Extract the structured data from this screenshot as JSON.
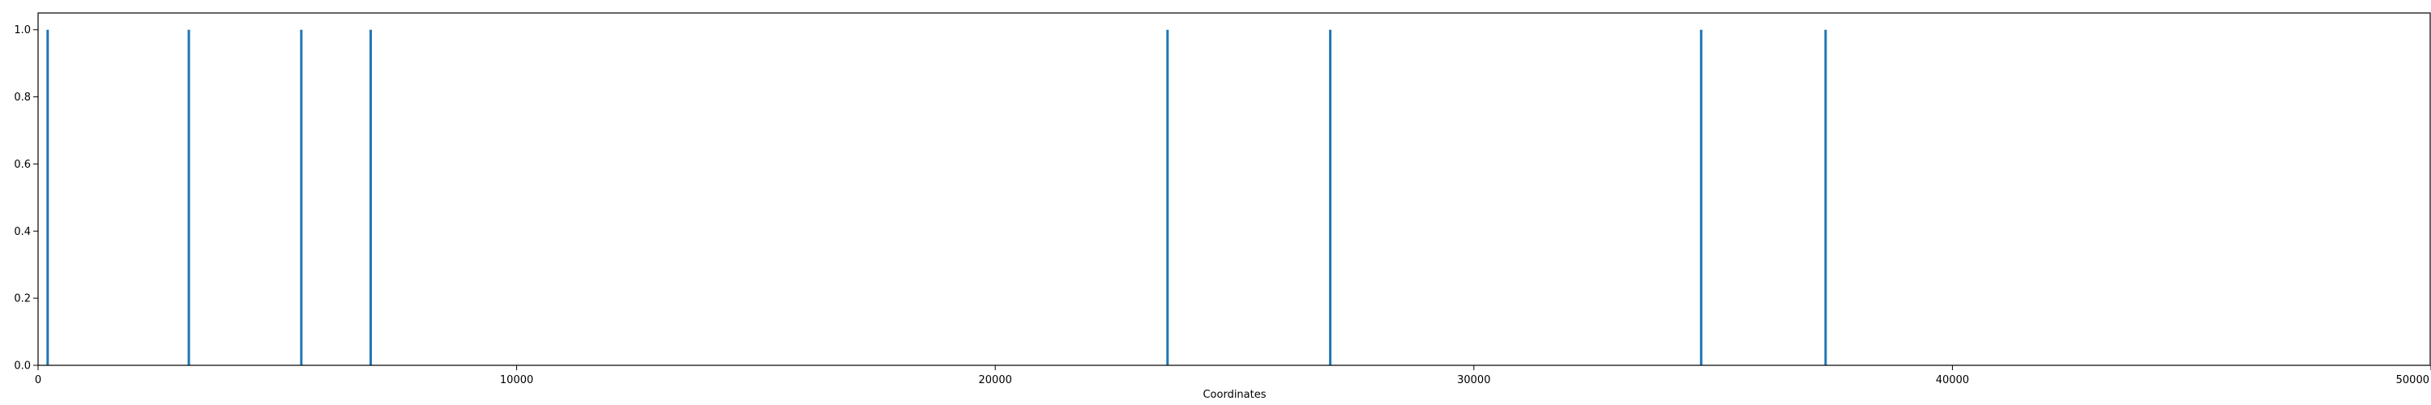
{
  "chart_data": {
    "type": "bar",
    "title": "",
    "xlabel": "Coordinates",
    "ylabel": "",
    "xlim": [
      0,
      50000
    ],
    "ylim": [
      0,
      1.05
    ],
    "x_ticks": [
      0,
      10000,
      20000,
      30000,
      40000,
      50000
    ],
    "y_ticks": [
      0.0,
      0.2,
      0.4,
      0.6,
      0.8,
      1.0
    ],
    "x_tick_labels": [
      "0",
      "10000",
      "20000",
      "30000",
      "40000",
      "50000"
    ],
    "y_tick_labels": [
      "0.0",
      "0.2",
      "0.4",
      "0.6",
      "0.8",
      "1.0"
    ],
    "grid": false,
    "legend": "none",
    "bar_color": "#1f77b4",
    "series": [
      {
        "x": [
          200,
          3150,
          5500,
          6950,
          23600,
          27000,
          34750,
          37350
        ],
        "values": [
          1,
          1,
          1,
          1,
          1,
          1,
          1,
          1
        ]
      }
    ]
  }
}
